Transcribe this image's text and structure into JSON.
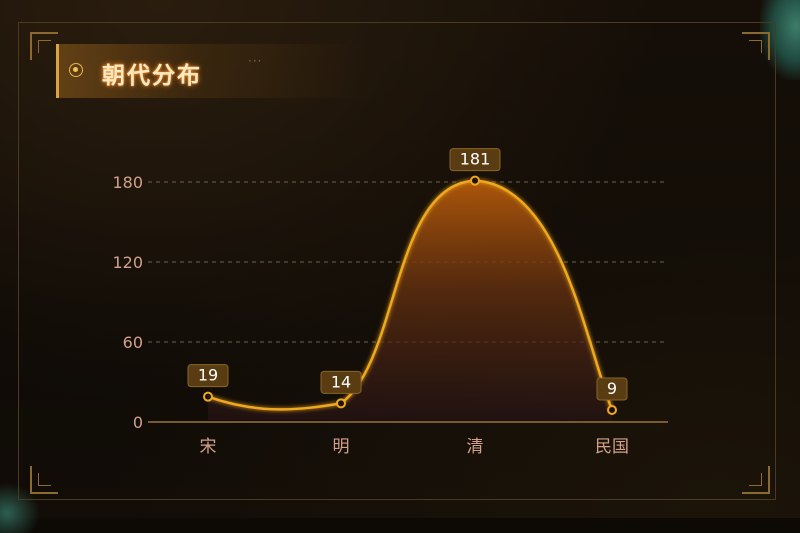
{
  "title": "朝代分布",
  "title_dots": "···",
  "colors": {
    "line": "#f0a81c",
    "grid": "#6e6150",
    "tick": "#d4a188",
    "label_bg": "#5a3c12",
    "label_text": "#ffffff",
    "axis": "#7a5a2a"
  },
  "chart_data": {
    "type": "area",
    "categories": [
      "宋",
      "明",
      "清",
      "民国"
    ],
    "series": [
      {
        "values": [
          19,
          14,
          181,
          9
        ]
      }
    ],
    "y_ticks": [
      "0",
      "60",
      "120",
      "180"
    ],
    "ylim": [
      0,
      200
    ],
    "grid": true,
    "smooth": true
  }
}
